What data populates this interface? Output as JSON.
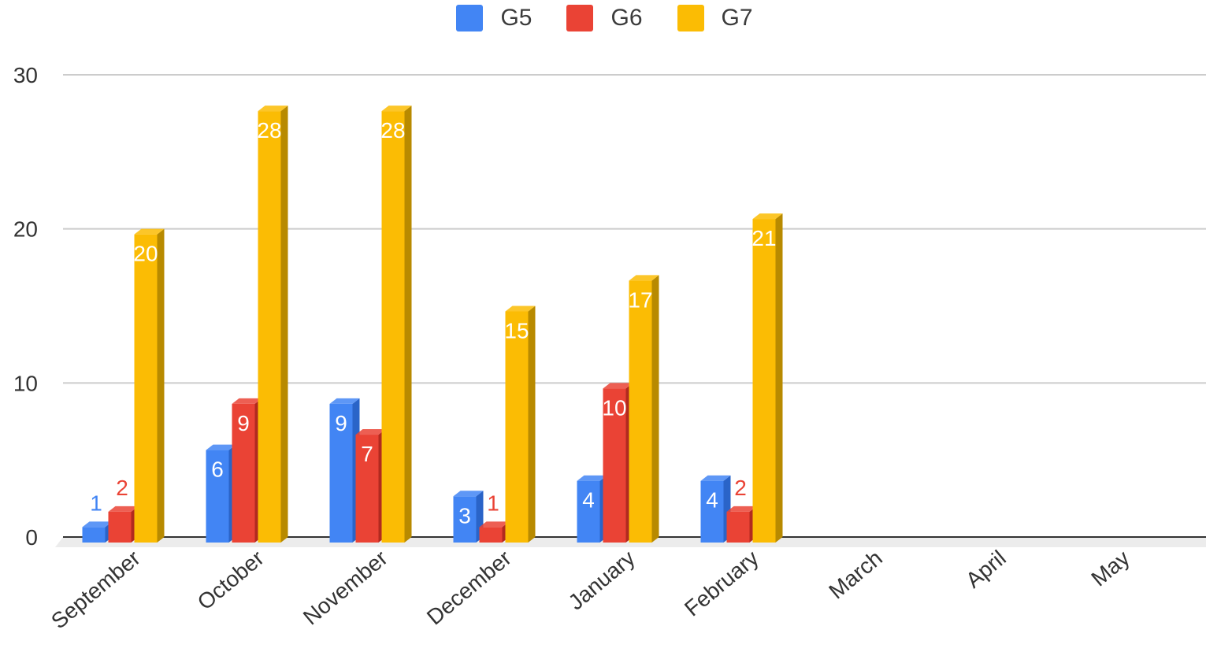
{
  "chart_data": {
    "type": "bar",
    "categories": [
      "September",
      "October",
      "November",
      "December",
      "January",
      "February",
      "March",
      "April",
      "May"
    ],
    "series": [
      {
        "name": "G5",
        "color": "#4285f4",
        "shade": "#2a64c8",
        "values": [
          1,
          6,
          9,
          3,
          4,
          4,
          null,
          null,
          null
        ]
      },
      {
        "name": "G6",
        "color": "#ea4335",
        "shade": "#b12a1f",
        "values": [
          2,
          9,
          7,
          1,
          10,
          2,
          null,
          null,
          null
        ]
      },
      {
        "name": "G7",
        "color": "#fbbc04",
        "shade": "#b88a00",
        "values": [
          20,
          28,
          28,
          15,
          17,
          21,
          null,
          null,
          null
        ]
      }
    ],
    "data_labels": [
      [
        "1",
        "6",
        "9",
        "3",
        "4",
        "4"
      ],
      [
        "2",
        "9",
        "7",
        "1",
        "10",
        "2"
      ],
      [
        "20",
        "28",
        "28",
        "15",
        "17",
        "21"
      ]
    ],
    "label_colors": {
      "inside": "#ffffff"
    },
    "y_ticks": [
      "0",
      "10",
      "20",
      "30"
    ],
    "ylim": [
      0,
      30
    ],
    "grid": true,
    "legend_position": "top-center",
    "title": "",
    "xlabel": "",
    "ylabel": "",
    "style": "3d-bar"
  }
}
